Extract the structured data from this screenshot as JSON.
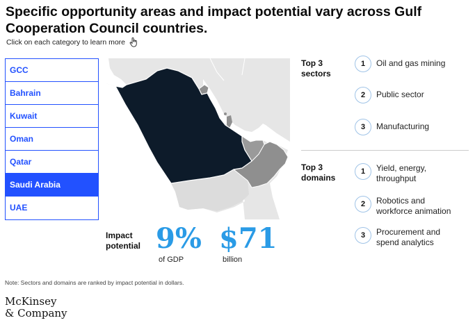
{
  "header": {
    "title": "Specific opportunity areas and impact potential vary across Gulf Cooperation Council countries.",
    "hint": "Click on each category to learn more",
    "hint_icon": "hand-pointer-icon"
  },
  "categories": [
    {
      "label": "GCC",
      "active": false
    },
    {
      "label": "Bahrain",
      "active": false
    },
    {
      "label": "Kuwait",
      "active": false
    },
    {
      "label": "Oman",
      "active": false
    },
    {
      "label": "Qatar",
      "active": false
    },
    {
      "label": "Saudi Arabia",
      "active": true
    },
    {
      "label": "UAE",
      "active": false
    }
  ],
  "colors": {
    "accent": "#2251ff",
    "highlight_country": "#0d1b2a",
    "neighbor_country": "#8f8f8f",
    "stat_blue": "#2a9be6"
  },
  "impact": {
    "label_line1": "Impact",
    "label_line2": "potential",
    "gdp_value": "9%",
    "gdp_caption": "of GDP",
    "dollar_value": "$71",
    "dollar_caption": "billion"
  },
  "sectors": {
    "label_line1": "Top 3",
    "label_line2": "sectors",
    "items": [
      {
        "rank": "1",
        "line1": "Oil and gas mining",
        "line2": ""
      },
      {
        "rank": "2",
        "line1": "Public sector",
        "line2": ""
      },
      {
        "rank": "3",
        "line1": "Manufacturing",
        "line2": ""
      }
    ]
  },
  "domains": {
    "label_line1": "Top 3",
    "label_line2": "domains",
    "items": [
      {
        "rank": "1",
        "line1": "Yield, energy,",
        "line2": "throughput"
      },
      {
        "rank": "2",
        "line1": "Robotics and",
        "line2": "workforce animation"
      },
      {
        "rank": "3",
        "line1": "Procurement and",
        "line2": "spend analytics"
      }
    ]
  },
  "footer": {
    "note": "Note: Sectors and domains are ranked by impact potential in dollars.",
    "logo_line1": "McKinsey",
    "logo_line2": "& Company"
  }
}
